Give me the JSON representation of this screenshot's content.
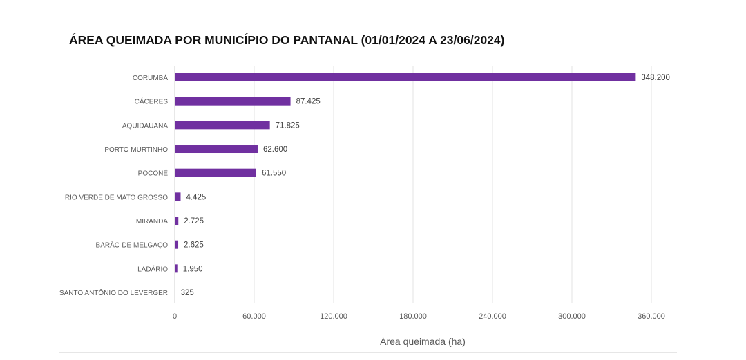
{
  "chart_data": {
    "type": "bar",
    "orientation": "horizontal",
    "title": "ÁREA QUEIMADA POR MUNICÍPIO DO PANTANAL (01/01/2024 A 23/06/2024)",
    "xlabel": "Área queimada (ha)",
    "ylabel": "",
    "categories": [
      "CORUMBÁ",
      "CÁCERES",
      "AQUIDAUANA",
      "PORTO MURTINHO",
      "POCONÉ",
      "RIO VERDE DE MATO GROSSO",
      "MIRANDA",
      "BARÃO DE MELGAÇO",
      "LADÁRIO",
      "SANTO ANTÔNIO DO LEVERGER"
    ],
    "values": [
      348200,
      87425,
      71825,
      62600,
      61550,
      4425,
      2725,
      2625,
      1950,
      325
    ],
    "data_labels": [
      "348.200",
      "87.425",
      "71.825",
      "62.600",
      "61.550",
      "4.425",
      "2.725",
      "2.625",
      "1.950",
      "325"
    ],
    "xlim": [
      0,
      360000
    ],
    "xticks": [
      0,
      60000,
      120000,
      180000,
      240000,
      300000,
      360000
    ],
    "xtick_labels": [
      "0",
      "60.000",
      "120.000",
      "180.000",
      "240.000",
      "300.000",
      "360.000"
    ],
    "grid": "vertical",
    "bar_color": "#7030a0"
  }
}
